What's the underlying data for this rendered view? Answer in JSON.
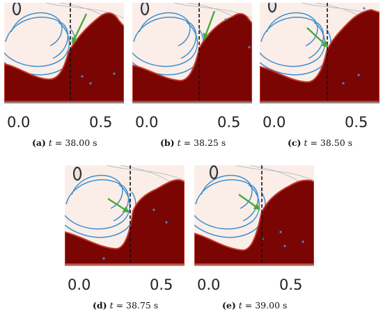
{
  "colors": {
    "flow": "#fbeee8",
    "solid": "#7a0503",
    "rim": "#c8352a",
    "streamline": "#3c8fd0",
    "isoline": "#aab4bc",
    "arrow": "#4aa83a",
    "interface": "#111111",
    "axis": "#555555"
  },
  "panels": [
    {
      "label": "(a)",
      "var": "t",
      "eq": " = ",
      "value": "38.00 s",
      "ticks": [
        "0.0",
        "0.5"
      ]
    },
    {
      "label": "(b)",
      "var": "t",
      "eq": " = ",
      "value": "38.25 s",
      "ticks": [
        "0.0",
        "0.5"
      ]
    },
    {
      "label": "(c)",
      "var": "t",
      "eq": " = ",
      "value": "38.50 s",
      "ticks": [
        "0.0",
        "0.5"
      ]
    },
    {
      "label": "(d)",
      "var": "t",
      "eq": " = ",
      "value": "38.75 s",
      "ticks": [
        "0.0",
        "0.5"
      ]
    },
    {
      "label": "(e)",
      "var": "t",
      "eq": " = ",
      "value": "39.00 s",
      "ticks": [
        "0.0",
        "0.5"
      ]
    }
  ]
}
